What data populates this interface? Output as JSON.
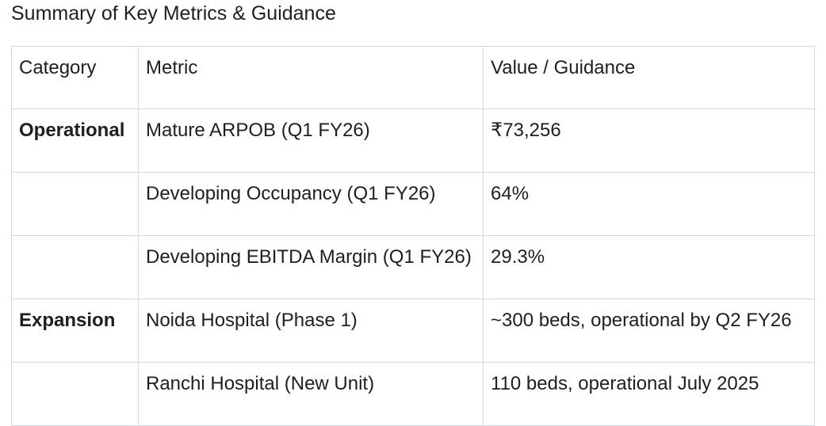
{
  "page": {
    "title": "Summary of Key Metrics & Guidance"
  },
  "table": {
    "headers": [
      "Category",
      "Metric",
      "Value / Guidance"
    ],
    "rows": [
      {
        "category": "Operational",
        "metric": "Mature ARPOB (Q1 FY26)",
        "value": "₹73,256"
      },
      {
        "category": "",
        "metric": "Developing Occupancy (Q1 FY26)",
        "value": "64%"
      },
      {
        "category": "",
        "metric": "Developing EBITDA Margin (Q1 FY26)",
        "value": "29.3%"
      },
      {
        "category": "Expansion",
        "metric": "Noida Hospital (Phase 1)",
        "value": "~300 beds, operational by Q2 FY26"
      },
      {
        "category": "",
        "metric": "Ranchi Hospital (New Unit)",
        "value": "110 beds, operational July 2025"
      }
    ]
  },
  "colors": {
    "text": "#1f1f1f",
    "table_border": "#d3d7de",
    "background": "#ffffff"
  }
}
